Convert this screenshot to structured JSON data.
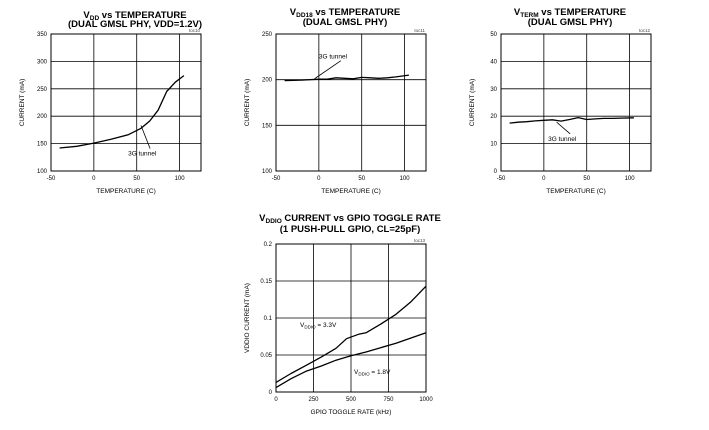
{
  "chart_data": [
    {
      "type": "line",
      "title_parts": {
        "main": "V",
        "sub": "DD",
        "rest": " vs TEMPERATURE"
      },
      "subtitle": "(DUAL GMSL PHY, VDD=1.2V)",
      "tag": "toc10",
      "xlabel": "TEMPERATURE (C)",
      "ylabel": "CURRENT (mA)",
      "xlim": [
        -50,
        125
      ],
      "ylim": [
        100,
        350
      ],
      "xticks": [
        "-50",
        "0",
        "50",
        "100"
      ],
      "xtick_values": [
        -50,
        0,
        50,
        100
      ],
      "yticks": [
        "100",
        "150",
        "200",
        "250",
        "300",
        "350"
      ],
      "ytick_values": [
        100,
        150,
        200,
        250,
        300,
        350
      ],
      "grid": true,
      "annotations": [
        {
          "text": "3G tunnel",
          "x": 40,
          "y": 128,
          "arrow_to": [
            55,
            183
          ]
        }
      ],
      "series": [
        {
          "values": [
            [
              -40,
              142
            ],
            [
              -20,
              145
            ],
            [
              0,
              151
            ],
            [
              20,
              158
            ],
            [
              40,
              166
            ],
            [
              55,
              178
            ],
            [
              65,
              191
            ],
            [
              75,
              211
            ],
            [
              85,
              245
            ],
            [
              95,
              262
            ],
            [
              105,
              274
            ]
          ]
        }
      ]
    },
    {
      "type": "line",
      "title_parts": {
        "main": "V",
        "sub": "DD18",
        "rest": " vs TEMPERATURE"
      },
      "subtitle": "(DUAL GMSL PHY)",
      "tag": "toc11",
      "xlabel": "TEMPERATURE (C)",
      "ylabel": "CURRENT (mA)",
      "xlim": [
        -50,
        125
      ],
      "ylim": [
        100,
        250
      ],
      "xticks": [
        "-50",
        "0",
        "50",
        "100"
      ],
      "xtick_values": [
        -50,
        0,
        50,
        100
      ],
      "yticks": [
        "100",
        "150",
        "200",
        "250"
      ],
      "ytick_values": [
        100,
        150,
        200,
        250
      ],
      "grid": true,
      "annotations": [
        {
          "text": "3G tunnel",
          "x": 0,
          "y": 223,
          "arrow_to": [
            -5,
            201
          ]
        }
      ],
      "series": [
        {
          "values": [
            [
              -40,
              199
            ],
            [
              -20,
              199.5
            ],
            [
              0,
              200.5
            ],
            [
              10,
              200.5
            ],
            [
              20,
              202
            ],
            [
              30,
              201.5
            ],
            [
              40,
              201
            ],
            [
              50,
              202.5
            ],
            [
              60,
              202
            ],
            [
              70,
              201.5
            ],
            [
              80,
              202
            ],
            [
              90,
              203
            ],
            [
              105,
              205
            ]
          ]
        }
      ]
    },
    {
      "type": "line",
      "title_parts": {
        "main": "V",
        "sub": "TERM",
        "rest": " vs TEMPERATURE"
      },
      "subtitle": "(DUAL GMSL PHY)",
      "tag": "toc12",
      "xlabel": "TEMPERATURE (C)",
      "ylabel": "CURRENT (mA)",
      "xlim": [
        -50,
        125
      ],
      "ylim": [
        0,
        50
      ],
      "xticks": [
        "-50",
        "0",
        "50",
        "100"
      ],
      "xtick_values": [
        -50,
        0,
        50,
        100
      ],
      "yticks": [
        "0",
        "10",
        "20",
        "30",
        "40",
        "50"
      ],
      "ytick_values": [
        0,
        10,
        20,
        30,
        40,
        50
      ],
      "grid": true,
      "annotations": [
        {
          "text": "3G tunnel",
          "x": 5,
          "y": 11,
          "arrow_to": [
            15,
            17.8
          ]
        }
      ],
      "series": [
        {
          "values": [
            [
              -40,
              17.5
            ],
            [
              -30,
              17.8
            ],
            [
              -20,
              18
            ],
            [
              -10,
              18.3
            ],
            [
              0,
              18.5
            ],
            [
              10,
              18.7
            ],
            [
              20,
              18.2
            ],
            [
              30,
              18.8
            ],
            [
              40,
              19.5
            ],
            [
              50,
              18.8
            ],
            [
              60,
              19
            ],
            [
              70,
              19.2
            ],
            [
              80,
              19.2
            ],
            [
              90,
              19.3
            ],
            [
              105,
              19.4
            ]
          ]
        }
      ]
    },
    {
      "type": "line",
      "title_parts": {
        "main": "V",
        "sub": "DDIO",
        "rest": " CURRENT vs GPIO TOGGLE RATE"
      },
      "subtitle": "(1 PUSH-PULL GPIO, CL=25pF)",
      "tag": "toc13",
      "xlabel": "GPIO TOGGLE RATE (kHz)",
      "ylabel": "VDDIO CURRENT (mA)",
      "xlim": [
        0,
        1000
      ],
      "ylim": [
        0,
        0.2
      ],
      "xticks": [
        "0",
        "250",
        "500",
        "750",
        "1000"
      ],
      "xtick_values": [
        0,
        250,
        500,
        750,
        1000
      ],
      "yticks": [
        "0",
        "0.05",
        "0.1",
        "0.15",
        "0.2"
      ],
      "ytick_values": [
        0,
        0.05,
        0.1,
        0.15,
        0.2
      ],
      "grid": true,
      "annotations": [
        {
          "text_main": "V",
          "text_sub": "DDIO",
          "text_rest": " = 3.3V",
          "x": 160,
          "y": 0.088
        },
        {
          "text_main": "V",
          "text_sub": "DDIO",
          "text_rest": " = 1.8V",
          "x": 520,
          "y": 0.024
        }
      ],
      "series": [
        {
          "name": "VDDIO = 3.3V",
          "values": [
            [
              0,
              0.013
            ],
            [
              100,
              0.025
            ],
            [
              200,
              0.036
            ],
            [
              300,
              0.047
            ],
            [
              400,
              0.059
            ],
            [
              470,
              0.072
            ],
            [
              550,
              0.078
            ],
            [
              600,
              0.08
            ],
            [
              700,
              0.092
            ],
            [
              800,
              0.105
            ],
            [
              900,
              0.122
            ],
            [
              1000,
              0.143
            ]
          ]
        },
        {
          "name": "VDDIO = 1.8V",
          "values": [
            [
              0,
              0.006
            ],
            [
              100,
              0.018
            ],
            [
              200,
              0.028
            ],
            [
              300,
              0.035
            ],
            [
              400,
              0.043
            ],
            [
              500,
              0.049
            ],
            [
              600,
              0.054
            ],
            [
              700,
              0.06
            ],
            [
              800,
              0.066
            ],
            [
              900,
              0.073
            ],
            [
              1000,
              0.08
            ]
          ]
        }
      ]
    }
  ]
}
